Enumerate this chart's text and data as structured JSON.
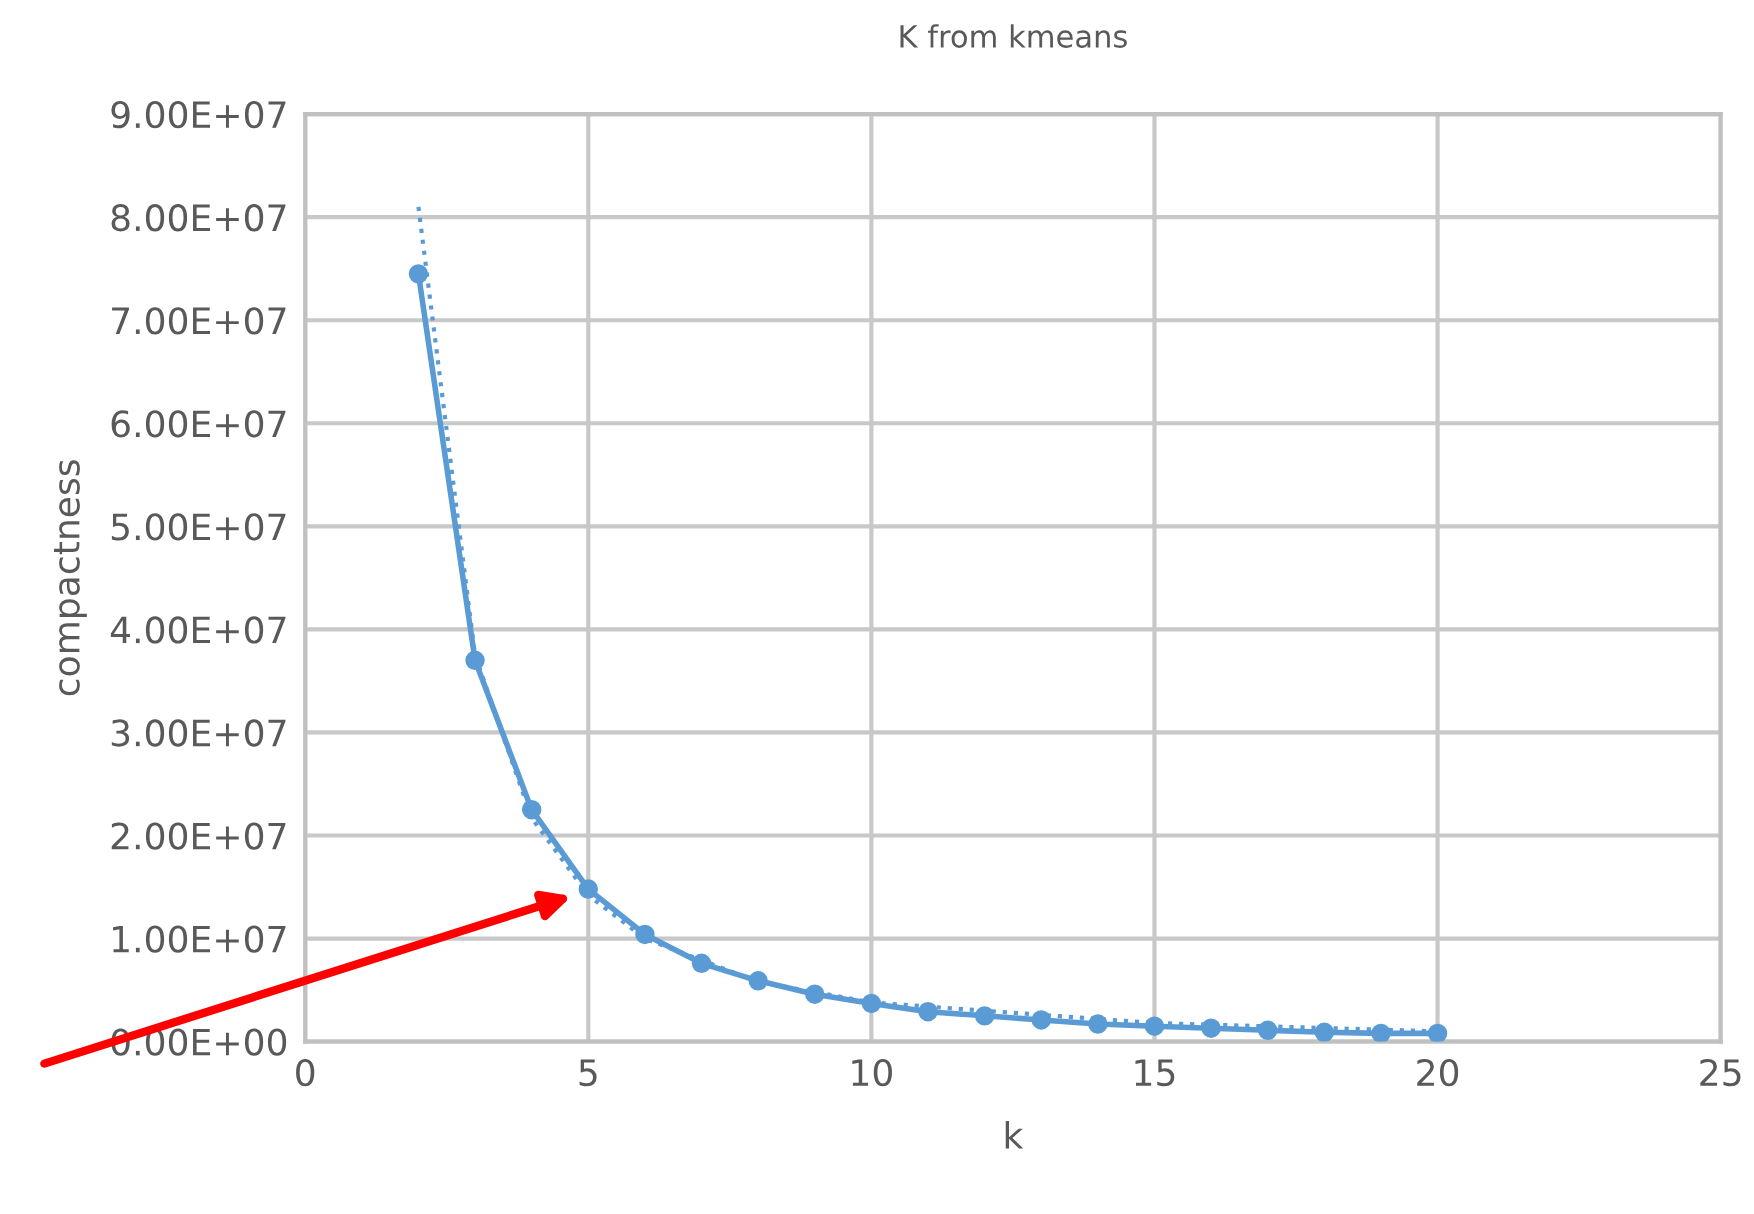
{
  "chart_data": {
    "type": "line",
    "title": "K from kmeans",
    "xlabel": "k",
    "ylabel": "compactness",
    "x": [
      2,
      3,
      4,
      5,
      6,
      7,
      8,
      9,
      10,
      11,
      12,
      13,
      14,
      15,
      16,
      17,
      18,
      19,
      20
    ],
    "series": [
      {
        "color": "#5b9bd5",
        "marker": "circle",
        "line_style": "solid",
        "values": [
          74500000,
          37000000,
          22500000,
          14800000,
          10400000,
          7600000,
          5900000,
          4600000,
          3700000,
          2900000,
          2500000,
          2100000,
          1700000,
          1500000,
          1300000,
          1100000,
          900000,
          800000,
          800000
        ]
      },
      {
        "color": "#5b9bd5",
        "marker": "none",
        "line_style": "dotted",
        "x": [
          2,
          3,
          4,
          5,
          6,
          8,
          10,
          15,
          20
        ],
        "values": [
          81000000,
          37500000,
          21700000,
          14200000,
          10000000,
          5800000,
          3800000,
          1800000,
          1000000
        ]
      }
    ],
    "xlim": [
      0,
      25
    ],
    "xticks": [
      0,
      5,
      10,
      15,
      20,
      25
    ],
    "ylim": [
      0,
      90000000
    ],
    "yticks": [
      {
        "value": 0,
        "label": "0.00E+00"
      },
      {
        "value": 10000000,
        "label": "1.00E+07"
      },
      {
        "value": 20000000,
        "label": "2.00E+07"
      },
      {
        "value": 30000000,
        "label": "3.00E+07"
      },
      {
        "value": 40000000,
        "label": "4.00E+07"
      },
      {
        "value": 50000000,
        "label": "5.00E+07"
      },
      {
        "value": 60000000,
        "label": "6.00E+07"
      },
      {
        "value": 70000000,
        "label": "7.00E+07"
      },
      {
        "value": 80000000,
        "label": "8.00E+07"
      },
      {
        "value": 90000000,
        "label": "9.00E+07"
      }
    ],
    "grid": true
  }
}
